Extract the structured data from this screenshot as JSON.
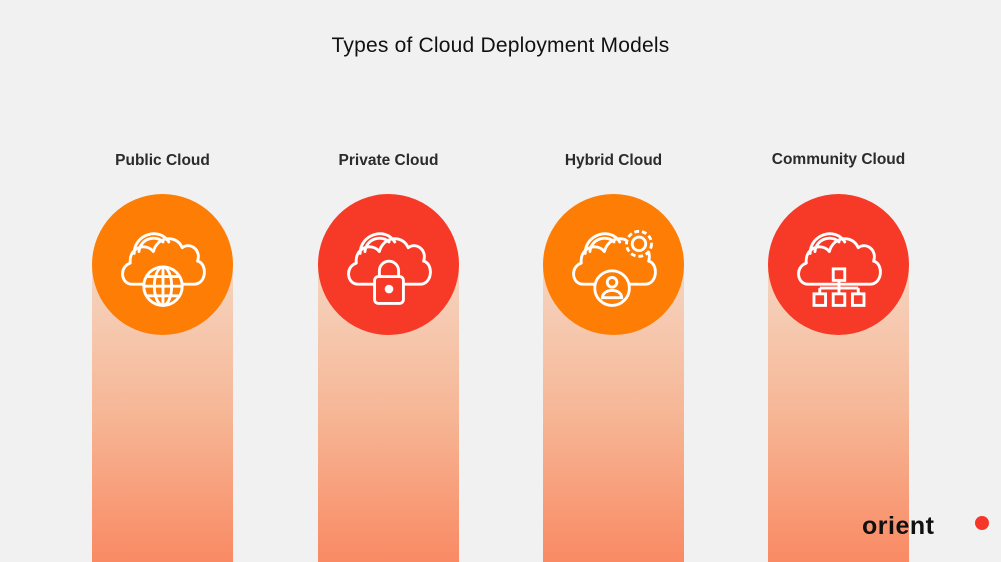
{
  "title": "Types of Cloud Deployment Models",
  "colors": {
    "orange": "#fd7d05",
    "red": "#f63a27",
    "background": "#f1f1f1"
  },
  "models": [
    {
      "label": "Public Cloud",
      "icon": "cloud-globe-icon",
      "color": "#fd7d05"
    },
    {
      "label": "Private Cloud",
      "icon": "cloud-lock-icon",
      "color": "#f63a27"
    },
    {
      "label": "Hybrid Cloud",
      "icon": "cloud-gear-user-icon",
      "color": "#fd7d05"
    },
    {
      "label": "Community Cloud",
      "icon": "cloud-network-icon",
      "color": "#f63a27"
    }
  ],
  "logo": {
    "text": "orient"
  }
}
